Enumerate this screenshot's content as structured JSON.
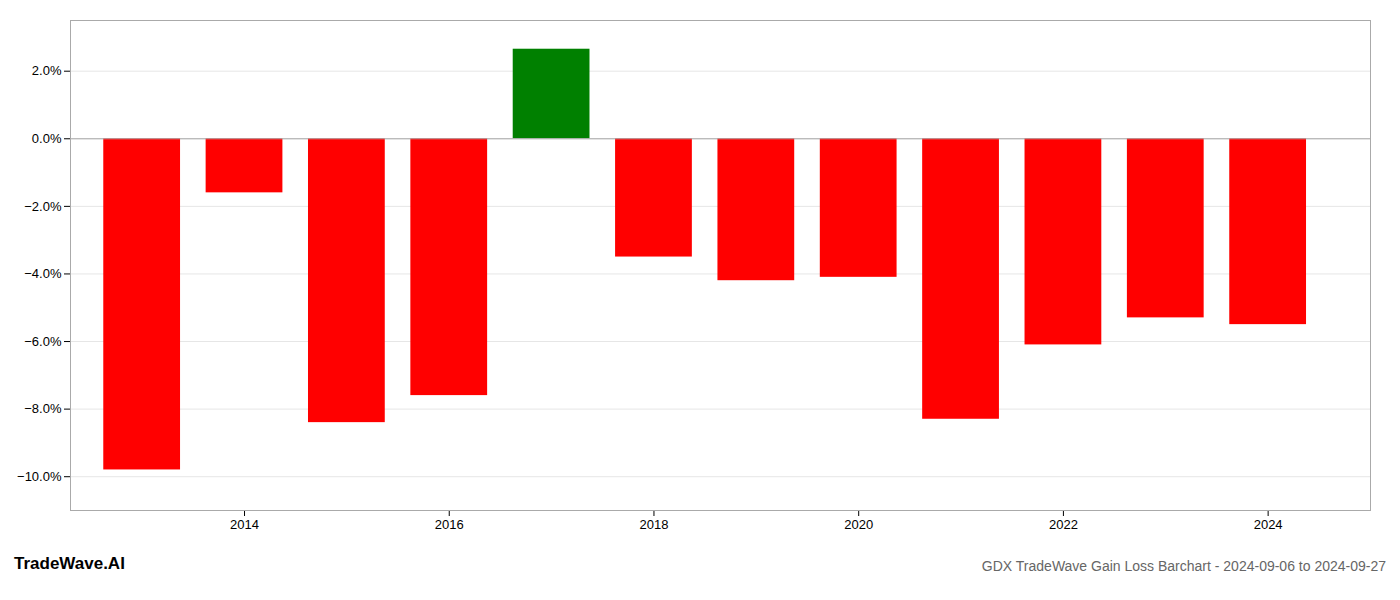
{
  "chart_data": {
    "type": "bar",
    "title": "GDX TradeWave Gain Loss Barchart - 2024-09-06 to 2024-09-27",
    "annotations": [
      "TradeWave.AI"
    ],
    "x": [
      2013,
      2014,
      2015,
      2016,
      2017,
      2018,
      2019,
      2020,
      2021,
      2022,
      2023,
      2024
    ],
    "values": [
      -9.8,
      -1.6,
      -8.4,
      -7.6,
      2.65,
      -3.5,
      -4.2,
      -4.1,
      -8.3,
      -6.1,
      -5.3,
      -5.5
    ],
    "colors": [
      "#ff0000",
      "#ff0000",
      "#ff0000",
      "#ff0000",
      "#008000",
      "#ff0000",
      "#ff0000",
      "#ff0000",
      "#ff0000",
      "#ff0000",
      "#ff0000",
      "#ff0000"
    ],
    "xlim": [
      2012.3,
      2025.0
    ],
    "xticks": [
      2014,
      2016,
      2018,
      2020,
      2022,
      2024
    ],
    "ylim": [
      -11.0,
      3.5
    ],
    "yticks": [
      {
        "value": -10.0,
        "label": "−10.0%"
      },
      {
        "value": -8.0,
        "label": "−8.0%"
      },
      {
        "value": -6.0,
        "label": "−6.0%"
      },
      {
        "value": -4.0,
        "label": "−4.0%"
      },
      {
        "value": -2.0,
        "label": "−2.0%"
      },
      {
        "value": 0.0,
        "label": "0.0%"
      },
      {
        "value": 2.0,
        "label": "2.0%"
      }
    ],
    "grid": true
  }
}
